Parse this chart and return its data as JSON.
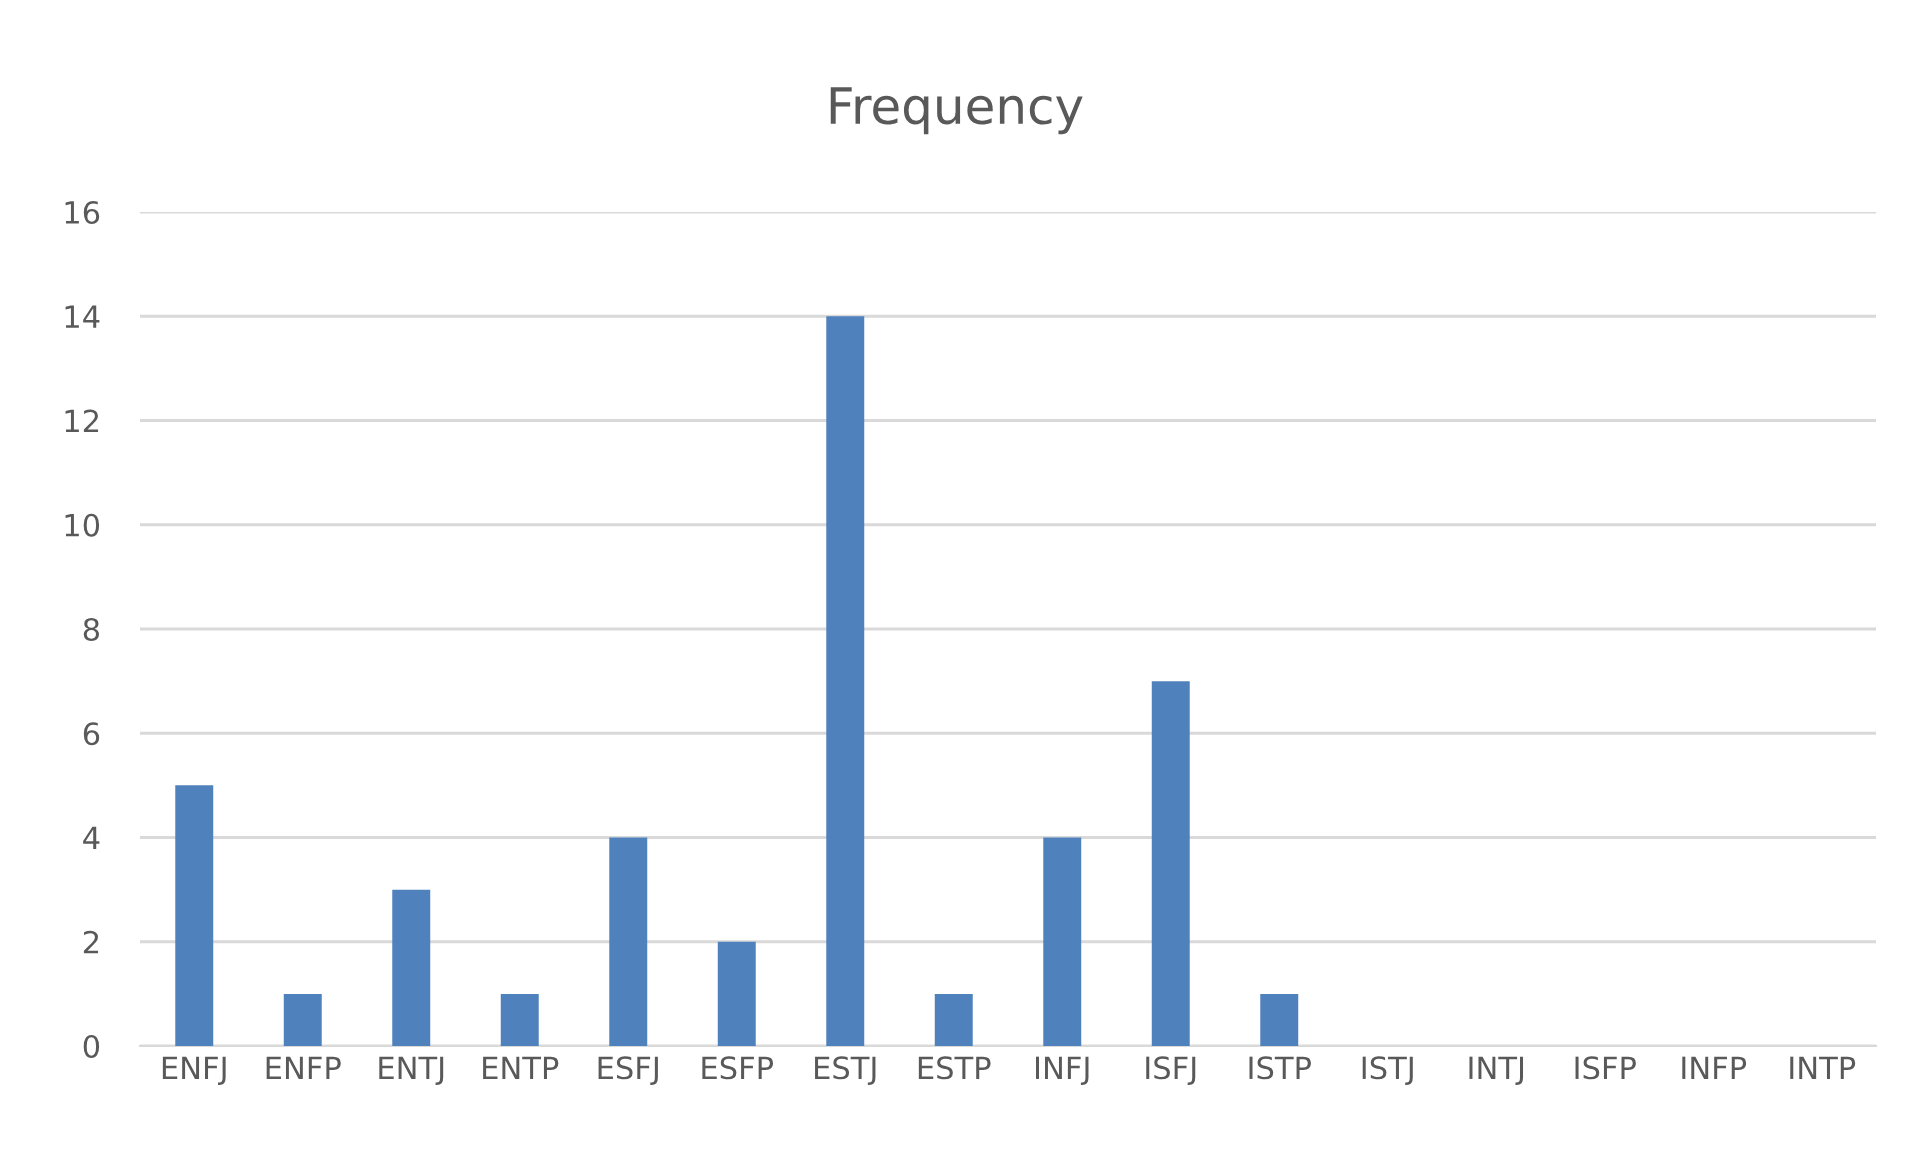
{
  "chart_data": {
    "type": "bar",
    "title": "Frequency",
    "categories": [
      "ENFJ",
      "ENFP",
      "ENTJ",
      "ENTP",
      "ESFJ",
      "ESFP",
      "ESTJ",
      "ESTP",
      "INFJ",
      "ISFJ",
      "ISTP",
      "ISTJ",
      "INTJ",
      "ISFP",
      "INFP",
      "INTP"
    ],
    "values": [
      5,
      1,
      3,
      1,
      4,
      2,
      14,
      1,
      4,
      7,
      1,
      0,
      0,
      0,
      0,
      0
    ],
    "color": "#4f81bd",
    "ylim": [
      0,
      16
    ],
    "yticks": [
      0,
      2,
      4,
      6,
      8,
      10,
      12,
      14,
      16
    ],
    "grid": "y",
    "legend": false
  }
}
